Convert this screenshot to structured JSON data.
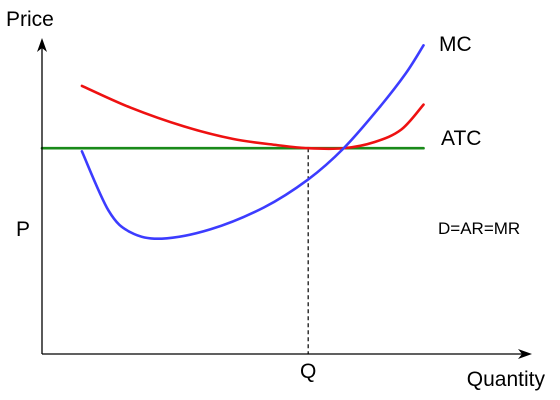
{
  "chart_data": {
    "type": "line",
    "ylabel": "Price",
    "xlabel": "Quantity",
    "x_tick_label": "Q",
    "y_tick_label": "P",
    "series": [
      {
        "name": "MC",
        "color": "#3c3cff",
        "points": [
          [
            0.09,
            0.65
          ],
          [
            0.15,
            0.46
          ],
          [
            0.2,
            0.39
          ],
          [
            0.27,
            0.37
          ],
          [
            0.38,
            0.4
          ],
          [
            0.5,
            0.47
          ],
          [
            0.6,
            0.56
          ],
          [
            0.68,
            0.66
          ],
          [
            0.76,
            0.79
          ],
          [
            0.82,
            0.9
          ],
          [
            0.86,
            0.99
          ]
        ]
      },
      {
        "name": "ATC",
        "color": "#ee1111",
        "points": [
          [
            0.09,
            0.86
          ],
          [
            0.2,
            0.79
          ],
          [
            0.32,
            0.73
          ],
          [
            0.43,
            0.69
          ],
          [
            0.53,
            0.67
          ],
          [
            0.6,
            0.66
          ],
          [
            0.68,
            0.66
          ],
          [
            0.75,
            0.68
          ],
          [
            0.81,
            0.72
          ],
          [
            0.86,
            0.8
          ]
        ]
      },
      {
        "name": "D=AR=MR",
        "color": "#1a8a1a",
        "points": [
          [
            0.0,
            0.66
          ],
          [
            0.86,
            0.66
          ]
        ]
      }
    ],
    "equilibrium": {
      "x": 0.6,
      "y": 0.66
    },
    "xlim": [
      0,
      1.1
    ],
    "ylim": [
      0,
      1.02
    ],
    "grid": false,
    "legend": "inline labels at curve ends"
  }
}
